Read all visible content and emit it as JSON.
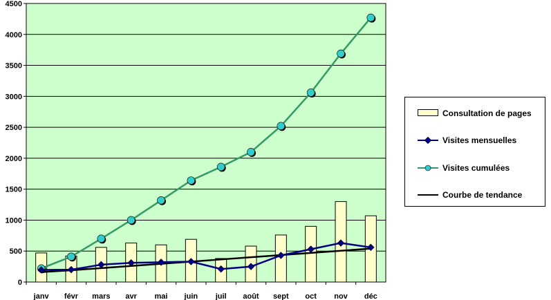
{
  "chart_data": {
    "type": "bar",
    "categories": [
      "janv",
      "févr",
      "mars",
      "avr",
      "mai",
      "juin",
      "juil",
      "août",
      "sept",
      "oct",
      "nov",
      "déc"
    ],
    "ylim": [
      0,
      4500
    ],
    "yticks": [
      0,
      500,
      1000,
      1500,
      2000,
      2500,
      3000,
      3500,
      4000,
      4500
    ],
    "grid": true,
    "legend_position": "right",
    "colors": {
      "plot_background": "#ccffcc",
      "bar_fill": "#ffffcc",
      "bar_stroke": "#000000",
      "monthly_line": "#000080",
      "cumulative_line": "#339966",
      "cumulative_marker": "#33cccc",
      "trend_line": "#000000"
    },
    "series": [
      {
        "name": "Consultation de pages",
        "type": "bar",
        "values": [
          470,
          420,
          560,
          630,
          600,
          690,
          380,
          580,
          760,
          900,
          1300,
          1070
        ]
      },
      {
        "name": "Visites mensuelles",
        "type": "line",
        "marker": "diamond",
        "values": [
          195,
          200,
          280,
          310,
          320,
          330,
          210,
          250,
          430,
          530,
          630,
          560
        ]
      },
      {
        "name": "Visites cumulées",
        "type": "line",
        "marker": "circle",
        "values": [
          220,
          410,
          700,
          1000,
          1320,
          1640,
          1860,
          2100,
          2520,
          3060,
          3690,
          4270
        ]
      },
      {
        "name": "Courbe de tendance",
        "type": "line",
        "marker": "none",
        "values": [
          160,
          190,
          225,
          260,
          295,
          330,
          365,
          400,
          435,
          470,
          505,
          540
        ]
      }
    ]
  }
}
